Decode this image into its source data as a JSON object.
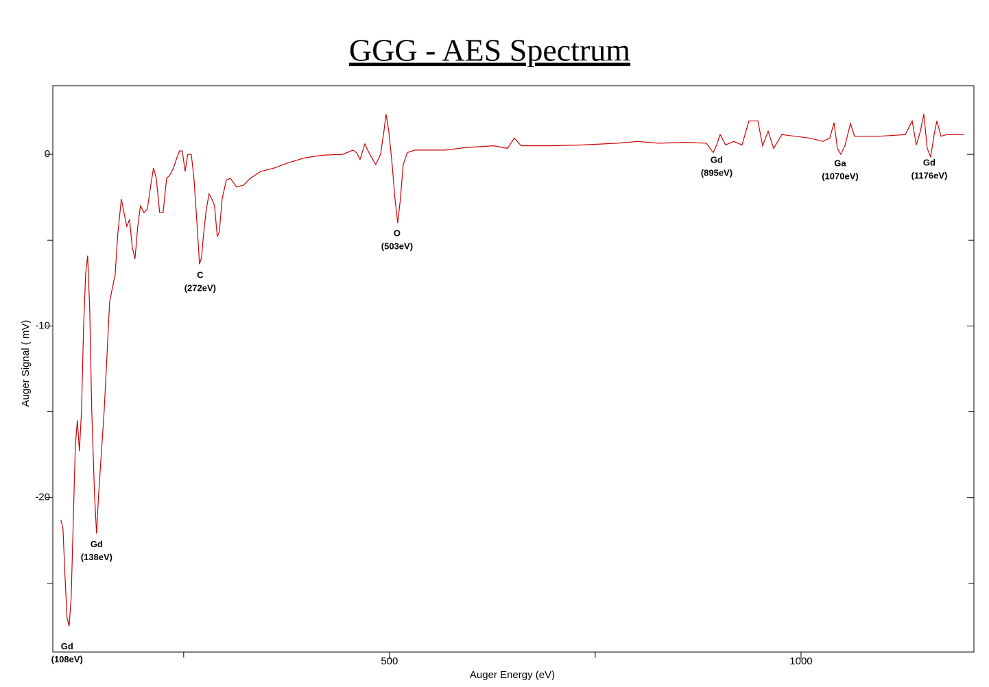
{
  "chart_data": {
    "type": "line",
    "title": "GGG - AES Spectrum",
    "x_label": "Auger Energy (eV)",
    "y_label": "Auger Signal ( mV)",
    "color": "#cc0000",
    "xlim": [
      91,
      1210
    ],
    "ylim": [
      -29,
      4
    ],
    "xticks": [
      500,
      1000
    ],
    "x_minor_ticks": [
      250,
      750
    ],
    "yticks": [
      0,
      -10,
      -20
    ],
    "y_minor_ticks": [
      -5,
      -15,
      -25
    ],
    "x": [
      100.8,
      103.3,
      105.8,
      108.3,
      110.8,
      113.3,
      115.8,
      118.3,
      120.8,
      123.3,
      125.8,
      128.3,
      130.8,
      133.3,
      135.8,
      138.3,
      141.7,
      144.2,
      146.7,
      150,
      153.3,
      156.7,
      160,
      163.3,
      166.7,
      170,
      174.2,
      177.5,
      180.8,
      184.2,
      187.5,
      190.8,
      194.2,
      197.5,
      201.7,
      205.8,
      210,
      213.3,
      216.7,
      220.8,
      225,
      229.2,
      233.3,
      237.5,
      241.7,
      245,
      248.3,
      251.7,
      255,
      259.2,
      262.5,
      265.8,
      269.2,
      271.7,
      274.2,
      277.5,
      280.8,
      284.2,
      287.5,
      290.8,
      293.3,
      296.7,
      301.7,
      306.7,
      314.2,
      322.5,
      330.8,
      343.3,
      360,
      376.7,
      397.5,
      418.3,
      443.3,
      455.8,
      460,
      464.2,
      470,
      475,
      483.3,
      489.2,
      493.3,
      495.8,
      499.2,
      503.3,
      506.7,
      510,
      513.3,
      516.7,
      521.7,
      530.8,
      543.3,
      568.3,
      593.3,
      610,
      626.7,
      643.3,
      651.7,
      660,
      693.3,
      735,
      776.7,
      801.7,
      826.7,
      860,
      885,
      893.3,
      897.5,
      901.7,
      908.3,
      918.3,
      928.3,
      936.7,
      947.5,
      953.3,
      960,
      966.7,
      976.7,
      993.3,
      1010,
      1026.7,
      1035,
      1040,
      1044.2,
      1048.3,
      1053.3,
      1060,
      1065,
      1093.3,
      1126.7,
      1135,
      1140,
      1145,
      1149.2,
      1153.3,
      1157.5,
      1161.7,
      1165,
      1170,
      1176.7,
      1197.5
    ],
    "values": [
      -21.3,
      -21.8,
      -24.6,
      -27.0,
      -27.5,
      -25.8,
      -21.4,
      -17.0,
      -15.5,
      -17.3,
      -15.0,
      -10.2,
      -7.0,
      -5.9,
      -9.0,
      -15.0,
      -19.8,
      -22.1,
      -19.8,
      -17.4,
      -15.0,
      -11.8,
      -8.6,
      -7.8,
      -7.0,
      -4.6,
      -2.6,
      -3.4,
      -4.2,
      -3.8,
      -5.4,
      -6.1,
      -4.2,
      -3.0,
      -3.4,
      -3.2,
      -1.8,
      -0.8,
      -1.4,
      -3.4,
      -3.4,
      -1.4,
      -1.2,
      -0.8,
      -0.2,
      0.2,
      0.2,
      -1.0,
      0.0,
      0.0,
      -1.4,
      -3.8,
      -6.4,
      -6.0,
      -4.6,
      -3.2,
      -2.3,
      -2.6,
      -3.0,
      -4.8,
      -4.5,
      -2.6,
      -1.5,
      -1.4,
      -1.9,
      -1.8,
      -1.4,
      -1.0,
      -0.8,
      -0.5,
      -0.2,
      -0.05,
      0,
      0.25,
      0.1,
      -0.3,
      0.6,
      0.1,
      -0.6,
      0.0,
      1.35,
      2.35,
      1.35,
      -0.6,
      -2.6,
      -4.0,
      -2.6,
      -0.6,
      0.1,
      0.25,
      0.25,
      0.25,
      0.4,
      0.45,
      0.5,
      0.35,
      0.95,
      0.5,
      0.5,
      0.55,
      0.65,
      0.75,
      0.65,
      0.7,
      0.65,
      0.1,
      0.55,
      1.15,
      0.55,
      0.75,
      0.55,
      1.95,
      1.95,
      0.5,
      1.35,
      0.35,
      1.15,
      1.05,
      0.95,
      0.75,
      0.95,
      1.85,
      0.35,
      0.0,
      0.5,
      1.8,
      1.05,
      1.05,
      1.15,
      1.95,
      0.55,
      1.35,
      2.35,
      0.35,
      -0.15,
      1.15,
      1.95,
      1.05,
      1.15,
      1.15
    ],
    "annotations": [
      {
        "element": "Gd",
        "energy": "(108eV)",
        "x": 108.3,
        "y": -28.7
      },
      {
        "element": "Gd",
        "energy": "(138eV)",
        "x": 144.2,
        "y": -22.75
      },
      {
        "element": "C",
        "energy": "(272eV)",
        "x": 270,
        "y": -7.07
      },
      {
        "element": "O",
        "energy": "(503eV)",
        "x": 509.2,
        "y": -4.63
      },
      {
        "element": "Gd",
        "energy": "(895eV)",
        "x": 897.5,
        "y": -0.36
      },
      {
        "element": "Ga",
        "energy": "(1070eV)",
        "x": 1047.5,
        "y": -0.56
      },
      {
        "element": "Gd",
        "energy": "(1176eV)",
        "x": 1155.8,
        "y": -0.52
      }
    ]
  }
}
